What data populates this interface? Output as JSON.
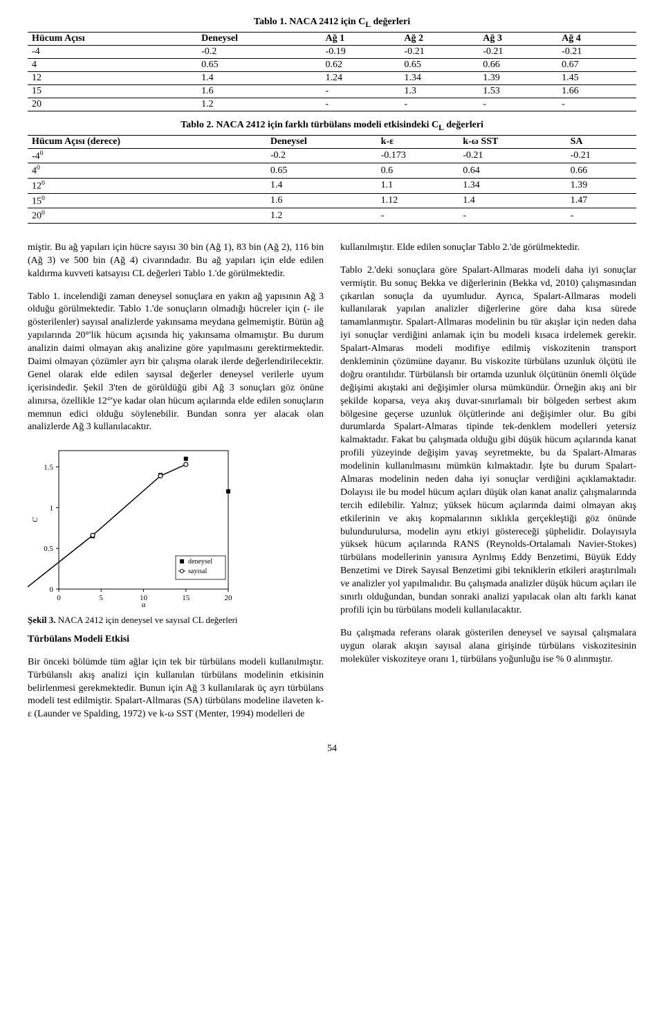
{
  "table1": {
    "title": "Tablo 1. NACA 2412 için C",
    "title_sub": "L",
    "title_suffix": " değerleri",
    "headers": [
      "Hücum Açısı",
      "Deneysel",
      "Ağ 1",
      "Ağ 2",
      "Ağ 3",
      "Ağ 4"
    ],
    "rows": [
      [
        "-4",
        "-0.2",
        "-0.19",
        "-0.21",
        "-0.21",
        "-0.21"
      ],
      [
        "4",
        "0.65",
        "0.62",
        "0.65",
        "0.66",
        "0.67"
      ],
      [
        "12",
        "1.4",
        "1.24",
        "1.34",
        "1.39",
        "1.45"
      ],
      [
        "15",
        "1.6",
        "-",
        "1.3",
        "1.53",
        "1.66"
      ],
      [
        "20",
        "1.2",
        "-",
        "-",
        "-",
        "-"
      ]
    ]
  },
  "table2": {
    "title": "Tablo 2. NACA 2412 için farklı türbülans modeli etkisindeki C",
    "title_sub": "L",
    "title_suffix": " değerleri",
    "headers": [
      "Hücum Açısı (derece)",
      "Deneysel",
      "k-ε",
      "k-ω SST",
      "SA"
    ],
    "rows": [
      [
        "-4",
        "-0.2",
        "-0.173",
        "-0.21",
        "-0.21"
      ],
      [
        "4",
        "0.65",
        "0.6",
        "0.64",
        "0.66"
      ],
      [
        "12",
        "1.4",
        "1.1",
        "1.34",
        "1.39"
      ],
      [
        "15",
        "1.6",
        "1.12",
        "1.4",
        "1.47"
      ],
      [
        "20",
        "1.2",
        "-",
        "-",
        "-"
      ]
    ],
    "superscript": "0"
  },
  "left_col": {
    "p1": "miştir. Bu ağ yapıları için hücre sayısı 30 bin (Ağ 1), 83 bin (Ağ 2), 116 bin (Ağ 3) ve 500 bin (Ağ 4) civarındadır. Bu ağ yapıları için elde edilen kaldırma kuvveti katsayısı CL değerleri Tablo 1.'de görülmektedir.",
    "p2": "Tablo 1. incelendiği zaman deneysel sonuçlara en yakın ağ yapısının Ağ 3 olduğu görülmektedir. Tablo 1.'de sonuçların olmadığı hücreler için (- ile gösterilenler) sayısal analizlerde yakınsama meydana gelmemiştir. Bütün ağ yapılarında 20°'lik hücum açısında hiç yakınsama olmamıştır. Bu durum analizin daimi olmayan akış analizine göre yapılmasını gerektirmektedir. Daimi olmayan çözümler ayrı bir çalışma olarak ilerde değerlendirilecektir. Genel olarak elde edilen sayısal değerler deneysel verilerle uyum içerisindedir. Şekil 3'ten de görüldüğü gibi Ağ 3 sonuçları göz önüne alınırsa, özellikle 12°'ye kadar olan hücum açılarında elde edilen sonuçların memnun edici olduğu söylenebilir. Bundan sonra yer alacak olan analizlerde Ağ 3 kullanılacaktır.",
    "fig_caption_prefix": "Şekil 3.",
    "fig_caption_rest": " NACA 2412 için deneysel ve sayısal CL değerleri",
    "section": "Türbülans Modeli Etkisi",
    "p3": "Bir önceki bölümde tüm ağlar için tek bir türbülans modeli kullanılmıştır. Türbülanslı akış analizi için kullanılan türbülans modelinin etkisinin belirlenmesi gerekmektedir. Bunun için Ağ  3 kullanılarak üç ayrı türbülans modeli test edilmiştir. Spalart-Allmaras (SA) türbülans modeline ilaveten k-ε (Launder ve Spalding, 1972) ve k-ω SST (Menter, 1994) modelleri de"
  },
  "right_col": {
    "p1": "kullanılmıştır. Elde edilen sonuçlar Tablo 2.'de görülmektedir.",
    "p2": "Tablo 2.'deki sonuçlara göre Spalart-Allmaras modeli daha iyi sonuçlar vermiştir. Bu sonuç Bekka ve diğerlerinin (Bekka vd, 2010) çalışmasından çıkarılan sonuçla da uyumludur. Ayrıca, Spalart-Allmaras modeli kullanılarak yapılan analizler diğerlerine göre daha kısa sürede tamamlanmıştır. Spalart-Allmaras modelinin bu tür akışlar için neden daha iyi sonuçlar verdiğini anlamak için bu modeli kısaca irdelemek gerekir. Spalart-Almaras modeli modifiye edilmiş viskozitenin transport denkleminin çözümüne dayanır. Bu viskozite türbülans uzunluk ölçütü ile doğru orantılıdır. Türbülanslı bir ortamda uzunluk ölçütünün önemli ölçüde değişimi akıştaki ani değişimler olursa mümkündür. Örneğin akış ani bir şekilde koparsa, veya akış duvar-sınırlamalı bir bölgeden serbest akım bölgesine geçerse uzunluk ölçütlerinde ani değişimler olur. Bu gibi durumlarda Spalart-Almaras tipinde tek-denklem modelleri yetersiz kalmaktadır. Fakat bu çalışmada olduğu gibi düşük hücum açılarında kanat profili yüzeyinde değişim yavaş seyretmekte, bu da Spalart-Almaras modelinin kullanılmasını mümkün kılmaktadır. İşte bu durum Spalart-Almaras modelinin neden daha iyi sonuçlar verdiğini açıklamaktadır. Dolayısı ile bu model hücum açıları düşük olan kanat analiz çalışmalarında tercih edilebilir. Yalnız; yüksek hücum açılarında daimi olmayan akış etkilerinin ve akış kopmalarının sıklıkla gerçekleştiği göz önünde bulundurulursa, modelin aynı etkiyi göstereceği şüphelidir. Dolayısıyla yüksek hücum açılarında RANS (Reynolds-Ortalamalı Navier-Stokes) türbülans modellerinin yanısıra Ayrılmış Eddy Benzetimi, Büyük Eddy Benzetimi ve Direk Sayısal Benzetimi gibi tekniklerin etkileri araştırılmalı ve analizler yol yapılmalıdır. Bu çalışmada analizler düşük hücum açıları ile sınırlı olduğundan, bundan sonraki analizi yapılacak olan altı farklı kanat profili için bu türbülans modeli kullanılacaktır.",
    "p3": "Bu çalışmada referans olarak gösterilen deneysel ve sayısal çalışmalara uygun olarak akışın sayısal alana girişinde türbülans viskozitesinin moleküler viskoziteye oranı 1, türbülans yoğunluğu ise % 0 alınmıştır."
  },
  "chart": {
    "type": "line",
    "ylabel": "CL",
    "xlabel": "α",
    "xlim": [
      0,
      20
    ],
    "ylim": [
      0,
      1.7
    ],
    "xticks": [
      0,
      5,
      10,
      15,
      20
    ],
    "yticks": [
      0,
      0.5,
      1,
      1.5
    ],
    "series": [
      {
        "name": "deneysel",
        "marker": "square",
        "x": [
          4,
          12,
          15,
          20
        ],
        "y": [
          0.65,
          1.4,
          1.6,
          1.2
        ],
        "color": "#000",
        "line": false
      },
      {
        "name": "sayısal",
        "marker": "circle",
        "x": [
          -4,
          4,
          12,
          15
        ],
        "y": [
          -0.21,
          0.66,
          1.39,
          1.53
        ],
        "color": "#000",
        "line": true
      }
    ],
    "legend_labels": [
      "deneysel",
      "sayısal"
    ],
    "background_color": "#ffffff",
    "axis_color": "#000000",
    "font_size": 11
  },
  "page_number": "54"
}
